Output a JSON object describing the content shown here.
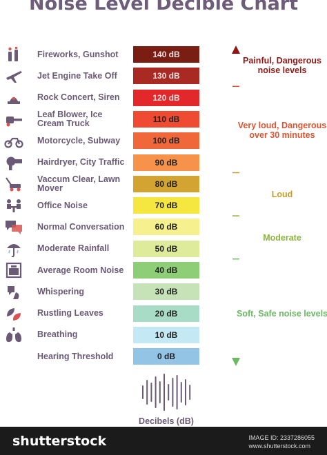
{
  "chart_data": {
    "type": "bar",
    "title": "Noise Level Decible Chart",
    "xlabel": "Decibels (dB)",
    "rows": [
      {
        "label": "Fireworks, Gunshot",
        "value": 140,
        "value_label": "140 dB",
        "color": "#7a1e14",
        "icon": "fireworks-icon"
      },
      {
        "label": "Jet Engine Take Off",
        "value": 130,
        "value_label": "130 dB",
        "color": "#a92a22",
        "icon": "jet-icon"
      },
      {
        "label": "Rock Concert, Siren",
        "value": 120,
        "value_label": "120 dB",
        "color": "#e2282a",
        "icon": "siren-icon"
      },
      {
        "label": "Leaf Blower, Ice Cream Truck",
        "value": 110,
        "value_label": "110 dB",
        "color": "#ef4a32",
        "icon": "leaf-blower-icon"
      },
      {
        "label": "Motorcycle, Subway",
        "value": 100,
        "value_label": "100 dB",
        "color": "#f0673a",
        "icon": "motorcycle-icon"
      },
      {
        "label": "Hairdryer, City Traffic",
        "value": 90,
        "value_label": "90 dB",
        "color": "#f7924a",
        "icon": "hairdryer-icon"
      },
      {
        "label": "Vaccum Clear, Lawn Mover",
        "value": 80,
        "value_label": "80 dB",
        "color": "#d4a433",
        "icon": "lawn-mower-icon"
      },
      {
        "label": "Office Noise",
        "value": 70,
        "value_label": "70 dB",
        "color": "#f6e640",
        "icon": "office-icon"
      },
      {
        "label": "Normal Conversation",
        "value": 60,
        "value_label": "60 dB",
        "color": "#f7f08f",
        "icon": "conversation-icon"
      },
      {
        "label": "Moderate Rainfall",
        "value": 50,
        "value_label": "50 dB",
        "color": "#ddeb9a",
        "icon": "rain-icon"
      },
      {
        "label": "Average Room Noise",
        "value": 40,
        "value_label": "40 dB",
        "color": "#8dce76",
        "icon": "room-icon"
      },
      {
        "label": "Whispering",
        "value": 30,
        "value_label": "30 dB",
        "color": "#c5e3b6",
        "icon": "whisper-icon"
      },
      {
        "label": "Rustling Leaves",
        "value": 20,
        "value_label": "20 dB",
        "color": "#a9dcc6",
        "icon": "leaves-icon"
      },
      {
        "label": "Breathing",
        "value": 10,
        "value_label": "10 dB",
        "color": "#c4e8f4",
        "icon": "lungs-icon"
      },
      {
        "label": "Hearing Threshold",
        "value": 0,
        "value_label": "0 dB",
        "color": "#93c4e6",
        "icon": "none"
      }
    ],
    "zones": [
      {
        "label": "Painful, Dangerous noise levels",
        "color": "#8b1a17",
        "from": 130,
        "to": 140
      },
      {
        "label": "Very loud, Dangerous over 30 minutes",
        "color": "#e0542f",
        "from": 90,
        "to": 120
      },
      {
        "label": "Loud",
        "color": "#c39c2d",
        "from": 70,
        "to": 80
      },
      {
        "label": "Moderate",
        "color": "#8cb43c",
        "from": 50,
        "to": 60
      },
      {
        "label": "Soft, Safe noise levels",
        "color": "#6cb865",
        "from": 0,
        "to": 40
      }
    ]
  },
  "footer": {
    "brand": "shutterstock",
    "image_id_line": "IMAGE ID: 2337286055",
    "site_line": "www.shutterstock.com"
  },
  "colors": {
    "title": "#6e5d79",
    "arrow": "#8b1a17",
    "arrow_bottom": "#6cb865"
  }
}
